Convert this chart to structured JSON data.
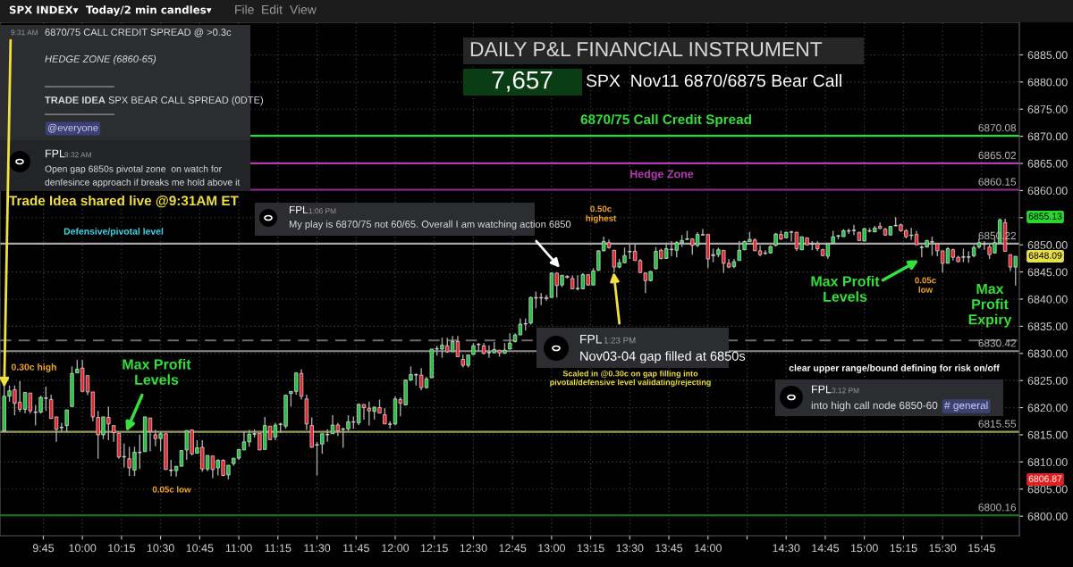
{
  "chart_data": {
    "type": "candlestick",
    "title": "DAILY P&L FINANCIAL INSTRUMENT",
    "subtitle": "SPX  Nov11 6870/6875 Bear Call",
    "x": [
      9.5,
      9.5333,
      9.5667,
      9.6,
      9.6333,
      9.6667,
      9.7,
      9.7333,
      9.7667,
      9.8,
      9.8333,
      9.8667,
      9.9,
      9.9333,
      9.9667,
      10,
      10.0333,
      10.0667,
      10.1,
      10.1333,
      10.1667,
      10.2,
      10.2333,
      10.2667,
      10.3,
      10.3333,
      10.3667,
      10.4,
      10.4333,
      10.4667,
      10.5,
      10.5333,
      10.5667,
      10.6,
      10.6333,
      10.6667,
      10.7,
      10.7333,
      10.7667,
      10.8,
      10.8333,
      10.8667,
      10.9,
      10.9333,
      10.9667,
      11,
      11.0333,
      11.0667,
      11.1,
      11.1333,
      11.1667,
      11.2,
      11.2333,
      11.2667,
      11.3,
      11.3333,
      11.3667,
      11.4,
      11.4333,
      11.4667,
      11.5,
      11.5333,
      11.5667,
      11.6,
      11.6333,
      11.6667,
      11.7,
      11.7333,
      11.7667,
      11.8,
      11.8333,
      11.8667,
      11.9,
      11.9333,
      11.9667,
      12,
      12.0333,
      12.0667,
      12.1,
      12.1333,
      12.1667,
      12.2,
      12.2333,
      12.2667,
      12.3,
      12.3333,
      12.3667,
      12.4,
      12.4333,
      12.4667,
      12.5,
      12.5333,
      12.5667,
      12.6,
      12.6333,
      12.6667,
      12.7,
      12.7333,
      12.7667,
      12.8,
      12.8333,
      12.8667,
      12.9,
      12.9333,
      12.9667,
      13,
      13.0333,
      13.0667,
      13.1,
      13.1333,
      13.1667,
      13.2,
      13.2333,
      13.2667,
      13.3,
      13.3333,
      13.3667,
      13.4,
      13.4333,
      13.4667,
      13.5,
      13.5333,
      13.5667,
      13.6,
      13.6333,
      13.6667,
      13.7,
      13.7333,
      13.7667,
      13.8,
      13.8333,
      13.8667,
      13.9,
      13.9333,
      13.9667,
      14,
      14.0333,
      14.0667,
      14.1,
      14.1333,
      14.1667,
      14.2,
      14.2333,
      14.2667,
      14.3,
      14.3333,
      14.3667,
      14.4,
      14.4333,
      14.4667,
      14.5,
      14.5333,
      14.5667,
      14.6,
      14.6333,
      14.6667,
      14.7,
      14.7333,
      14.7667,
      14.8,
      14.8333,
      14.8667,
      14.9,
      14.9333,
      14.9667,
      15,
      15.0333,
      15.0667,
      15.1,
      15.1333,
      15.1667,
      15.2,
      15.2333,
      15.2667,
      15.3,
      15.3333,
      15.3667,
      15.4,
      15.4333,
      15.4667,
      15.5,
      15.5333,
      15.5667,
      15.6,
      15.6333,
      15.6667,
      15.7,
      15.7333,
      15.7667,
      15.8,
      15.8333,
      15.8667,
      15.9,
      15.9333,
      15.9667
    ],
    "ohlc": [
      [
        6815.7,
        6824.1,
        6815.7,
        6822.1
      ],
      [
        6822.1,
        6824.1,
        6821.1,
        6823.1
      ],
      [
        6823.3,
        6824.1,
        6818.6,
        6820.8
      ],
      [
        6821.0,
        6824.9,
        6819.2,
        6819.7
      ],
      [
        6819.7,
        6822.8,
        6819.0,
        6822.8
      ],
      [
        6822.7,
        6822.7,
        6818.9,
        6819.4
      ],
      [
        6819.2,
        6820.5,
        6816.7,
        6819.1
      ],
      [
        6819.2,
        6822.2,
        6818.9,
        6821.9
      ],
      [
        6821.8,
        6823.9,
        6819.4,
        6821.7
      ],
      [
        6821.5,
        6822.4,
        6818.0,
        6818.0
      ],
      [
        6818.3,
        6818.3,
        6813.7,
        6816.0
      ],
      [
        6816.3,
        6817.2,
        6815.6,
        6816.4
      ],
      [
        6816.7,
        6819.6,
        6815.5,
        6819.6
      ],
      [
        6820.2,
        6827.6,
        6820.2,
        6826.3
      ],
      [
        6826.4,
        6828.8,
        6826.4,
        6827.1
      ],
      [
        6827.3,
        6828.8,
        6823.0,
        6823.0
      ],
      [
        6825.9,
        6825.9,
        6822.3,
        6822.9
      ],
      [
        6822.9,
        6822.9,
        6817.5,
        6818.3
      ],
      [
        6818.2,
        6819.4,
        6810.6,
        6815.0
      ],
      [
        6815.0,
        6818.3,
        6814.2,
        6818.3
      ],
      [
        6818.2,
        6820.2,
        6814.0,
        6817.0
      ],
      [
        6816.7,
        6816.7,
        6813.7,
        6815.4
      ],
      [
        6815.3,
        6815.3,
        6810.6,
        6810.9
      ],
      [
        6811.0,
        6813.4,
        6809.0,
        6810.9
      ],
      [
        6810.6,
        6812.8,
        6807.4,
        6808.9
      ],
      [
        6808.5,
        6812.8,
        6807.4,
        6811.8
      ],
      [
        6811.7,
        6815.0,
        6808.7,
        6811.8
      ],
      [
        6811.9,
        6818.3,
        6811.9,
        6818.3
      ],
      [
        6818.1,
        6818.1,
        6812.0,
        6815.6
      ],
      [
        6815.0,
        6815.9,
        6812.9,
        6814.3
      ],
      [
        6814.3,
        6815.6,
        6812.0,
        6815.2
      ],
      [
        6815.2,
        6815.2,
        6808.6,
        6808.6
      ],
      [
        6808.4,
        6810.4,
        6807.4,
        6808.5
      ],
      [
        6808.4,
        6809.2,
        6807.3,
        6809.2
      ],
      [
        6809.2,
        6812.1,
        6809.2,
        6812.1
      ],
      [
        6812.2,
        6815.8,
        6810.4,
        6815.8
      ],
      [
        6815.9,
        6815.9,
        6811.2,
        6811.5
      ],
      [
        6811.6,
        6814.0,
        6811.6,
        6812.6
      ],
      [
        6812.7,
        6814.0,
        6808.2,
        6808.7
      ],
      [
        6808.7,
        6811.2,
        6808.3,
        6811.2
      ],
      [
        6811.1,
        6811.1,
        6807.0,
        6808.6
      ],
      [
        6808.9,
        6810.5,
        6807.5,
        6810.3
      ],
      [
        6810.3,
        6810.5,
        6807.4,
        6807.5
      ],
      [
        6807.6,
        6809.4,
        6806.8,
        6809.4
      ],
      [
        6809.7,
        6810.7,
        6809.3,
        6810.7
      ],
      [
        6810.7,
        6812.3,
        6810.4,
        6812.3
      ],
      [
        6812.2,
        6815.6,
        6812.2,
        6813.7
      ],
      [
        6813.7,
        6815.9,
        6812.8,
        6815.1
      ],
      [
        6815.1,
        6816.0,
        6814.5,
        6815.2
      ],
      [
        6815.3,
        6815.3,
        6812.2,
        6812.2
      ],
      [
        6812.3,
        6818.3,
        6812.3,
        6816.7
      ],
      [
        6816.6,
        6816.6,
        6814.1,
        6814.1
      ],
      [
        6814.6,
        6817.2,
        6814.0,
        6816.8
      ],
      [
        6817.0,
        6817.2,
        6815.3,
        6816.9
      ],
      [
        6816.6,
        6822.3,
        6816.1,
        6822.3
      ],
      [
        6822.6,
        6823.0,
        6820.2,
        6823.0
      ],
      [
        6823.0,
        6826.4,
        6822.4,
        6826.4
      ],
      [
        6826.3,
        6827.1,
        6821.5,
        6822.1
      ],
      [
        6821.6,
        6822.4,
        6815.9,
        6817.0
      ],
      [
        6816.7,
        6818.2,
        6812.6,
        6812.7
      ],
      [
        6813.1,
        6813.7,
        6807.5,
        6813.2
      ],
      [
        6813.3,
        6815.2,
        6811.5,
        6815.2
      ],
      [
        6815.1,
        6816.0,
        6813.7,
        6815.0
      ],
      [
        6815.2,
        6818.6,
        6815.2,
        6816.8
      ],
      [
        6816.8,
        6817.2,
        6814.8,
        6815.7
      ],
      [
        6816.0,
        6816.3,
        6812.6,
        6816.1
      ],
      [
        6816.1,
        6818.6,
        6815.7,
        6817.4
      ],
      [
        6817.4,
        6818.4,
        6816.1,
        6817.3
      ],
      [
        6817.2,
        6820.8,
        6816.8,
        6820.6
      ],
      [
        6820.6,
        6820.6,
        6817.8,
        6820.0
      ],
      [
        6819.9,
        6821.1,
        6816.7,
        6819.4
      ],
      [
        6819.3,
        6820.2,
        6817.8,
        6820.1
      ],
      [
        6820.0,
        6821.5,
        6819.0,
        6819.0
      ],
      [
        6818.7,
        6819.9,
        6817.0,
        6817.0
      ],
      [
        6817.0,
        6817.5,
        6816.2,
        6816.9
      ],
      [
        6817.0,
        6822.1,
        6816.7,
        6821.6
      ],
      [
        6821.5,
        6821.9,
        6818.4,
        6820.8
      ],
      [
        6820.5,
        6825.2,
        6820.5,
        6825.1
      ],
      [
        6825.1,
        6827.6,
        6824.9,
        6826.1
      ],
      [
        6826.1,
        6826.3,
        6824.1,
        6826.0
      ],
      [
        6826.0,
        6827.3,
        6823.2,
        6823.7
      ],
      [
        6823.7,
        6825.7,
        6823.5,
        6825.3
      ],
      [
        6825.5,
        6830.8,
        6825.5,
        6830.8
      ],
      [
        6830.9,
        6831.4,
        6829.6,
        6830.8
      ],
      [
        6830.8,
        6832.9,
        6829.2,
        6831.5
      ],
      [
        6831.4,
        6832.9,
        6830.1,
        6830.3
      ],
      [
        6830.3,
        6833.2,
        6830.3,
        6832.2
      ],
      [
        6832.2,
        6833.2,
        6829.4,
        6829.4
      ],
      [
        6828.9,
        6829.8,
        6827.4,
        6827.8
      ],
      [
        6827.8,
        6829.8,
        6827.4,
        6829.7
      ],
      [
        6829.8,
        6831.9,
        6829.7,
        6831.4
      ],
      [
        6831.7,
        6831.9,
        6830.3,
        6831.6
      ],
      [
        6831.4,
        6831.9,
        6829.8,
        6830.0
      ],
      [
        6830.1,
        6831.5,
        6829.2,
        6830.2
      ],
      [
        6830.1,
        6832.1,
        6830.1,
        6830.7
      ],
      [
        6830.6,
        6830.6,
        6829.4,
        6830.1
      ],
      [
        6830.0,
        6831.9,
        6830.0,
        6830.6
      ],
      [
        6830.8,
        6833.7,
        6830.7,
        6831.9
      ],
      [
        6832.2,
        6833.7,
        6832.0,
        6833.4
      ],
      [
        6833.4,
        6836.4,
        6833.4,
        6835.4
      ],
      [
        6835.5,
        6836.4,
        6834.2,
        6835.4
      ],
      [
        6835.6,
        6840.5,
        6835.3,
        6840.3
      ],
      [
        6840.3,
        6841.4,
        6838.3,
        6840.2
      ],
      [
        6840.3,
        6841.1,
        6838.9,
        6840.2
      ],
      [
        6840.3,
        6840.8,
        6839.7,
        6840.1
      ],
      [
        6840.3,
        6844.9,
        6840.3,
        6844.8
      ],
      [
        6844.8,
        6844.8,
        6840.3,
        6842.5
      ],
      [
        6842.6,
        6844.4,
        6842.2,
        6844.4
      ],
      [
        6844.2,
        6844.4,
        6843.8,
        6844.0
      ],
      [
        6843.8,
        6844.4,
        6841.9,
        6841.9
      ],
      [
        6841.9,
        6844.4,
        6841.6,
        6842.0
      ],
      [
        6841.9,
        6844.8,
        6841.9,
        6844.5
      ],
      [
        6844.5,
        6844.5,
        6842.5,
        6842.6
      ],
      [
        6842.6,
        6845.7,
        6842.5,
        6845.2
      ],
      [
        6845.3,
        6849.0,
        6845.2,
        6848.9
      ],
      [
        6848.9,
        6851.5,
        6848.8,
        6850.6
      ],
      [
        6850.4,
        6851.0,
        6849.3,
        6849.5
      ],
      [
        6849.0,
        6849.1,
        6844.9,
        6845.9
      ],
      [
        6845.9,
        6847.4,
        6845.7,
        6846.7
      ],
      [
        6846.7,
        6849.5,
        6846.6,
        6848.0
      ],
      [
        6848.7,
        6850.1,
        6847.4,
        6848.8
      ],
      [
        6848.8,
        6850.1,
        6847.1,
        6847.1
      ],
      [
        6847.1,
        6847.4,
        6844.8,
        6844.9
      ],
      [
        6844.8,
        6844.9,
        6841.1,
        6843.4
      ],
      [
        6843.4,
        6845.2,
        6843.3,
        6845.1
      ],
      [
        6845.6,
        6849.6,
        6845.5,
        6848.8
      ],
      [
        6849.0,
        6849.3,
        6847.3,
        6847.5
      ],
      [
        6847.5,
        6850.4,
        6847.4,
        6849.3
      ],
      [
        6849.2,
        6850.7,
        6847.9,
        6849.1
      ],
      [
        6849.0,
        6850.7,
        6847.7,
        6850.4
      ],
      [
        6850.4,
        6851.8,
        6849.6,
        6850.8
      ],
      [
        6851.0,
        6852.6,
        6850.9,
        6851.1
      ],
      [
        6851.1,
        6851.2,
        6848.2,
        6849.9
      ],
      [
        6849.9,
        6852.3,
        6849.6,
        6851.9
      ],
      [
        6851.8,
        6852.9,
        6851.8,
        6851.9
      ],
      [
        6851.9,
        6851.9,
        6845.7,
        6847.4
      ],
      [
        6848.0,
        6849.3,
        6846.8,
        6848.2
      ],
      [
        6848.2,
        6849.5,
        6847.7,
        6849.1
      ],
      [
        6849.0,
        6849.0,
        6844.8,
        6846.6
      ],
      [
        6846.6,
        6847.4,
        6845.7,
        6845.9
      ],
      [
        6846.0,
        6847.4,
        6845.7,
        6846.9
      ],
      [
        6847.1,
        6850.7,
        6847.1,
        6849.0
      ],
      [
        6849.1,
        6850.8,
        6849.0,
        6850.6
      ],
      [
        6850.6,
        6852.4,
        6850.6,
        6851.0
      ],
      [
        6850.9,
        6851.2,
        6848.9,
        6848.9
      ],
      [
        6848.9,
        6849.9,
        6847.9,
        6848.2
      ],
      [
        6848.4,
        6849.0,
        6848.2,
        6848.5
      ],
      [
        6848.5,
        6849.9,
        6848.4,
        6849.7
      ],
      [
        6849.9,
        6852.2,
        6849.7,
        6852.0
      ],
      [
        6851.9,
        6852.6,
        6850.9,
        6851.1
      ],
      [
        6851.3,
        6852.4,
        6851.2,
        6852.3
      ],
      [
        6852.4,
        6852.6,
        6850.6,
        6852.3
      ],
      [
        6852.3,
        6852.4,
        6848.9,
        6849.3
      ],
      [
        6849.1,
        6851.5,
        6849.0,
        6851.5
      ],
      [
        6851.3,
        6851.3,
        6849.9,
        6850.0
      ],
      [
        6850.1,
        6850.7,
        6849.0,
        6850.2
      ],
      [
        6850.2,
        6850.7,
        6848.9,
        6849.3
      ],
      [
        6849.1,
        6849.3,
        6847.9,
        6848.0
      ],
      [
        6847.9,
        6850.4,
        6847.4,
        6850.2
      ],
      [
        6850.3,
        6852.6,
        6850.2,
        6851.5
      ],
      [
        6851.6,
        6851.8,
        6851.0,
        6851.7
      ],
      [
        6851.5,
        6852.9,
        6851.5,
        6852.6
      ],
      [
        6852.6,
        6853.0,
        6852.0,
        6852.5
      ],
      [
        6852.6,
        6853.7,
        6851.8,
        6852.7
      ],
      [
        6852.3,
        6852.4,
        6850.7,
        6850.8
      ],
      [
        6850.7,
        6853.1,
        6850.7,
        6853.0
      ],
      [
        6852.6,
        6853.1,
        6852.3,
        6852.5
      ],
      [
        6852.4,
        6853.5,
        6852.3,
        6853.1
      ],
      [
        6853.4,
        6854.1,
        6852.9,
        6853.0
      ],
      [
        6852.9,
        6853.1,
        6851.7,
        6851.8
      ],
      [
        6851.8,
        6853.5,
        6851.8,
        6853.4
      ],
      [
        6853.5,
        6855.1,
        6853.4,
        6853.6
      ],
      [
        6853.7,
        6853.9,
        6852.4,
        6852.6
      ],
      [
        6852.6,
        6852.9,
        6851.2,
        6851.5
      ],
      [
        6851.7,
        6853.1,
        6850.9,
        6851.8
      ],
      [
        6851.9,
        6852.6,
        6850.0,
        6850.0
      ],
      [
        6849.6,
        6849.9,
        6847.7,
        6849.5
      ],
      [
        6849.6,
        6850.9,
        6849.5,
        6850.8
      ],
      [
        6850.6,
        6851.5,
        6848.0,
        6850.5
      ],
      [
        6850.2,
        6850.2,
        6847.9,
        6848.9
      ],
      [
        6848.9,
        6848.9,
        6844.9,
        6846.6
      ],
      [
        6846.6,
        6849.6,
        6846.6,
        6849.3
      ],
      [
        6849.1,
        6849.3,
        6847.1,
        6847.7
      ],
      [
        6847.7,
        6848.0,
        6846.8,
        6846.9
      ],
      [
        6847.7,
        6849.3,
        6846.8,
        6847.8
      ],
      [
        6847.7,
        6848.8,
        6846.7,
        6847.8
      ],
      [
        6848.0,
        6849.9,
        6847.7,
        6849.5
      ],
      [
        6849.6,
        6851.2,
        6849.3,
        6850.4
      ],
      [
        6850.2,
        6850.7,
        6849.1,
        6850.1
      ],
      [
        6849.6,
        6850.1,
        6847.4,
        6848.2
      ],
      [
        6848.5,
        6851.2,
        6848.4,
        6850.4
      ],
      [
        6850.4,
        6854.9,
        6850.2,
        6854.6
      ],
      [
        6854.1,
        6854.8,
        6848.8,
        6848.8
      ],
      [
        6848.2,
        6848.2,
        6845.2,
        6845.9
      ],
      [
        6845.9,
        6847.9,
        6842.5,
        6847.9
      ]
    ],
    "colors": [
      "#1fc23b",
      "#1fc23b",
      "#e3262d",
      "#e3262d",
      "#1fc23b",
      "#e3262d",
      "#e3262d",
      "#1fc23b",
      "#e3262d",
      "#e3262d",
      "#e3262d",
      "#1fc23b",
      "#1fc23b",
      "#1fc23b",
      "#1fc23b",
      "#e3262d",
      "#e3262d",
      "#e3262d",
      "#e3262d",
      "#1fc23b",
      "#e3262d",
      "#e3262d",
      "#e3262d",
      "#e3262d",
      "#e3262d",
      "#1fc23b",
      "#1fc23b",
      "#1fc23b",
      "#e3262d",
      "#e3262d",
      "#1fc23b",
      "#e3262d",
      "#e3d23a",
      "#1fc23b",
      "#1fc23b",
      "#1fc23b",
      "#e3262d",
      "#1fc23b",
      "#e3262d",
      "#1fc23b",
      "#e3262d",
      "#1fc23b",
      "#e3262d",
      "#1fc23b",
      "#1fc23b",
      "#1fc23b",
      "#1fc23b",
      "#1fc23b",
      "#1fc23b",
      "#e3262d",
      "#1fc23b",
      "#e3262d",
      "#1fc23b",
      "#e3262d",
      "#1fc23b",
      "#1fc23b",
      "#1fc23b",
      "#e3262d",
      "#e3262d",
      "#e3262d",
      "#1fc23b",
      "#1fc23b",
      "#e3262d",
      "#1fc23b",
      "#e3262d",
      "#1fc23b",
      "#1fc23b",
      "#e3262d",
      "#1fc23b",
      "#e3262d",
      "#e3262d",
      "#1fc23b",
      "#e3262d",
      "#e3262d",
      "#e3262d",
      "#1fc23b",
      "#e3262d",
      "#1fc23b",
      "#1fc23b",
      "#e3262d",
      "#e3262d",
      "#1fc23b",
      "#1fc23b",
      "#e3262d",
      "#1fc23b",
      "#e3262d",
      "#1fc23b",
      "#e3262d",
      "#e3262d",
      "#1fc23b",
      "#1fc23b",
      "#e3262d",
      "#e3262d",
      "#1fc23b",
      "#1fc23b",
      "#e3262d",
      "#1fc23b",
      "#1fc23b",
      "#1fc23b",
      "#1fc23b",
      "#e3262d",
      "#1fc23b",
      "#e3262d",
      "#e3262d",
      "#e3262d",
      "#1fc23b",
      "#e3262d",
      "#1fc23b",
      "#e3262d",
      "#e3262d",
      "#1fc23b",
      "#1fc23b",
      "#e3262d",
      "#1fc23b",
      "#1fc23b",
      "#1fc23b",
      "#e3262d",
      "#e3262d",
      "#1fc23b",
      "#1fc23b",
      "#1fc23b",
      "#e3262d",
      "#e3262d",
      "#e3262d",
      "#1fc23b",
      "#1fc23b",
      "#e3262d",
      "#1fc23b",
      "#e3262d",
      "#1fc23b",
      "#1fc23b",
      "#1fc23b",
      "#e3262d",
      "#1fc23b",
      "#1fc23b",
      "#e3262d",
      "#1fc23b",
      "#1fc23b",
      "#e3262d",
      "#e3262d",
      "#1fc23b",
      "#1fc23b",
      "#1fc23b",
      "#1fc23b",
      "#e3262d",
      "#e3262d",
      "#1fc23b",
      "#1fc23b",
      "#1fc23b",
      "#e3262d",
      "#1fc23b",
      "#e3262d",
      "#e3262d",
      "#1fc23b",
      "#e3262d",
      "#1fc23b",
      "#e3262d",
      "#e3262d",
      "#1fc23b",
      "#1fc23b",
      "#1fc23b",
      "#1fc23b",
      "#e3262d",
      "#1fc23b",
      "#e3262d",
      "#1fc23b",
      "#e3262d",
      "#1fc23b",
      "#e3262d",
      "#e3262d",
      "#1fc23b",
      "#1fc23b",
      "#e3262d",
      "#e3262d",
      "#1fc23b",
      "#e3262d",
      "#e3262d",
      "#1fc23b",
      "#e3262d",
      "#e3262d",
      "#e3262d",
      "#1fc23b",
      "#e3262d",
      "#e3262d",
      "#1fc23b",
      "#1fc23b",
      "#1fc23b",
      "#1fc23b",
      "#e3262d",
      "#e3262d",
      "#1fc23b",
      "#1fc23b",
      "#e3262d",
      "#e3262d",
      "#1fc23b"
    ],
    "xlim": [
      9.473,
      15.991
    ],
    "xticks": [
      {
        "value": 9.75,
        "label": "9:45"
      },
      {
        "value": 10,
        "label": "10:00"
      },
      {
        "value": 10.25,
        "label": "10:15"
      },
      {
        "value": 10.5,
        "label": "10:30"
      },
      {
        "value": 10.75,
        "label": "10:45"
      },
      {
        "value": 11,
        "label": "11:00"
      },
      {
        "value": 11.25,
        "label": "11:15"
      },
      {
        "value": 11.5,
        "label": "11:30"
      },
      {
        "value": 11.75,
        "label": "11:45"
      },
      {
        "value": 12,
        "label": "12:00"
      },
      {
        "value": 12.25,
        "label": "12:15"
      },
      {
        "value": 12.5,
        "label": "12:30"
      },
      {
        "value": 12.75,
        "label": "12:45"
      },
      {
        "value": 13,
        "label": "13:00"
      },
      {
        "value": 13.25,
        "label": "13:15"
      },
      {
        "value": 13.5,
        "label": "13:30"
      },
      {
        "value": 13.75,
        "label": "13:45"
      },
      {
        "value": 14,
        "label": "14:00"
      },
      {
        "value": 14.25,
        "label": null
      },
      {
        "value": 14.5,
        "label": "14:30"
      },
      {
        "value": 14.75,
        "label": "14:45"
      },
      {
        "value": 15,
        "label": "15:00"
      },
      {
        "value": 15.25,
        "label": "15:15"
      },
      {
        "value": 15.5,
        "label": "15:30"
      },
      {
        "value": 15.75,
        "label": "15:45"
      }
    ],
    "ylim": [
      6796.4,
      6891.0
    ],
    "yticks": [
      {
        "value": 6800,
        "label": "6800.00"
      },
      {
        "value": 6805,
        "label": "6805.00"
      },
      {
        "value": 6810,
        "label": "6810.00"
      },
      {
        "value": 6815,
        "label": "6815.00"
      },
      {
        "value": 6820,
        "label": "6820.00"
      },
      {
        "value": 6825,
        "label": "6825.00"
      },
      {
        "value": 6830,
        "label": "6830.00"
      },
      {
        "value": 6835,
        "label": "6835.00"
      },
      {
        "value": 6840,
        "label": "6840.00"
      },
      {
        "value": 6845,
        "label": "6845.00"
      },
      {
        "value": 6850,
        "label": "6850.00"
      },
      {
        "value": 6855,
        "label": null
      },
      {
        "value": 6860,
        "label": "6860.00"
      },
      {
        "value": 6865,
        "label": "6865.00"
      },
      {
        "value": 6870,
        "label": "6870.00"
      },
      {
        "value": 6875,
        "label": "6875.00"
      },
      {
        "value": 6880,
        "label": "6880.00"
      },
      {
        "value": 6885,
        "label": "6885.00"
      }
    ],
    "grid": true,
    "ref_lines": [
      {
        "axis": "y",
        "value": 6870.08,
        "label": "6870.08",
        "color": "#22e02a"
      },
      {
        "axis": "y",
        "value": 6865.02,
        "label": "6865.02",
        "color": "#b23cb2"
      },
      {
        "axis": "y",
        "value": 6860.15,
        "label": "6860.15",
        "color": "#962e96"
      },
      {
        "axis": "y",
        "value": 6850.22,
        "label": "6850.22",
        "color": "#a6a6a6"
      },
      {
        "axis": "y",
        "value": 6832.4,
        "color": "#6a6a6a",
        "line_style": "dashed"
      },
      {
        "axis": "y",
        "value": 6830.42,
        "label": "6830.42",
        "color": "#8c8c8c"
      },
      {
        "axis": "y",
        "value": 6815.55,
        "label": "6815.55",
        "color": "#9c9c5a"
      },
      {
        "axis": "y",
        "value": 6800.16,
        "label": "6800.16",
        "color": "#1e6e2a"
      }
    ],
    "annotations": [
      "0.30c high",
      "Max Profit\nLevels",
      "0.05c low",
      "0.50c\nhighest",
      "Max Profit\nLevels",
      "0.05c\nlow",
      "Max\nProfit\nExpiry",
      "6870/75 Call Credit Spread",
      "Hedge Zone",
      "Defensive/pivotal level",
      "6855.13",
      "6848.09",
      "6806.87",
      "SPX INDEX▾",
      "Today/2 min candles▾",
      "File",
      "Edit",
      "View",
      "7,657",
      {
        "text": "9:31 AM",
        "x": 9.5,
        "y": 6823.7
      },
      "6870/75 CALL CREDIT SPREAD @ >0.3c",
      "HEDGE ZONE (6860-65)",
      "———————",
      "TRADE IDEA",
      "SPX BEAR CALL SPREAD (0DTE)",
      "———————",
      "@everyone",
      "FPL",
      "9:32 AM",
      "Open gap 6850s pivotal zone  on watch for",
      "denfesince approach if breaks me hold above it",
      "Trade Idea shared live @9:31AM ET",
      "FPL",
      "1:06 PM",
      "My play is 6870/75 not 60/65. Overall I am watching action 6850",
      "FPL",
      "1:23 PM",
      "Nov03-04 gap filled at 6850s",
      "Scaled in @0.30c on gap filling into\npivotal/defensive level validating/rejecting",
      "clear upper range/bound defining for risk on/off",
      "FPL",
      "3:12 PM",
      "into high call node 6850-60",
      "# general"
    ]
  }
}
